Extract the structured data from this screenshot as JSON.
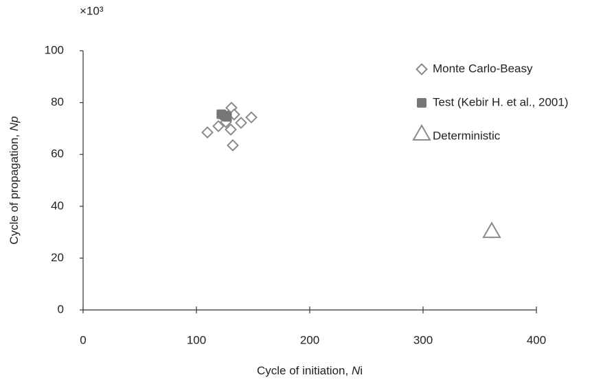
{
  "chart_data": {
    "type": "scatter",
    "y_multiplier": "×10³",
    "x_label_parts": [
      {
        "text": "Cycle of initiation, "
      },
      {
        "text": "N",
        "italic": true
      },
      {
        "text": "i"
      }
    ],
    "y_label_parts": [
      {
        "text": "Cycle of propagation, "
      },
      {
        "text": "Np",
        "italic": true
      }
    ],
    "xlim": [
      0,
      400
    ],
    "xticks": [
      0,
      100,
      200,
      300,
      400
    ],
    "ylim": [
      0,
      100
    ],
    "yticks": [
      0,
      20,
      40,
      60,
      80,
      100
    ],
    "legend": "top-right",
    "series": [
      {
        "name": "Monte Carlo-Beasy",
        "marker": "diamond",
        "color": "#8a8a8a",
        "x": [
          109.7,
          119.4,
          130.9,
          133.3,
          126,
          130.3,
          139.4,
          148.5,
          132.1
        ],
        "y": [
          68.5,
          70.9,
          78.0,
          75.4,
          72.5,
          69.6,
          72.2,
          74.3,
          63.5
        ]
      },
      {
        "name": "Test (Kebir H. et al., 2001)",
        "marker": "square",
        "color": "#777777",
        "x": [
          122,
          125,
          127
        ],
        "y": [
          75.5,
          75,
          74.5
        ]
      },
      {
        "name": "Deterministic",
        "marker": "triangle",
        "color": "#8a8a8a",
        "x": [
          360.6
        ],
        "y": [
          30.4
        ]
      }
    ]
  }
}
